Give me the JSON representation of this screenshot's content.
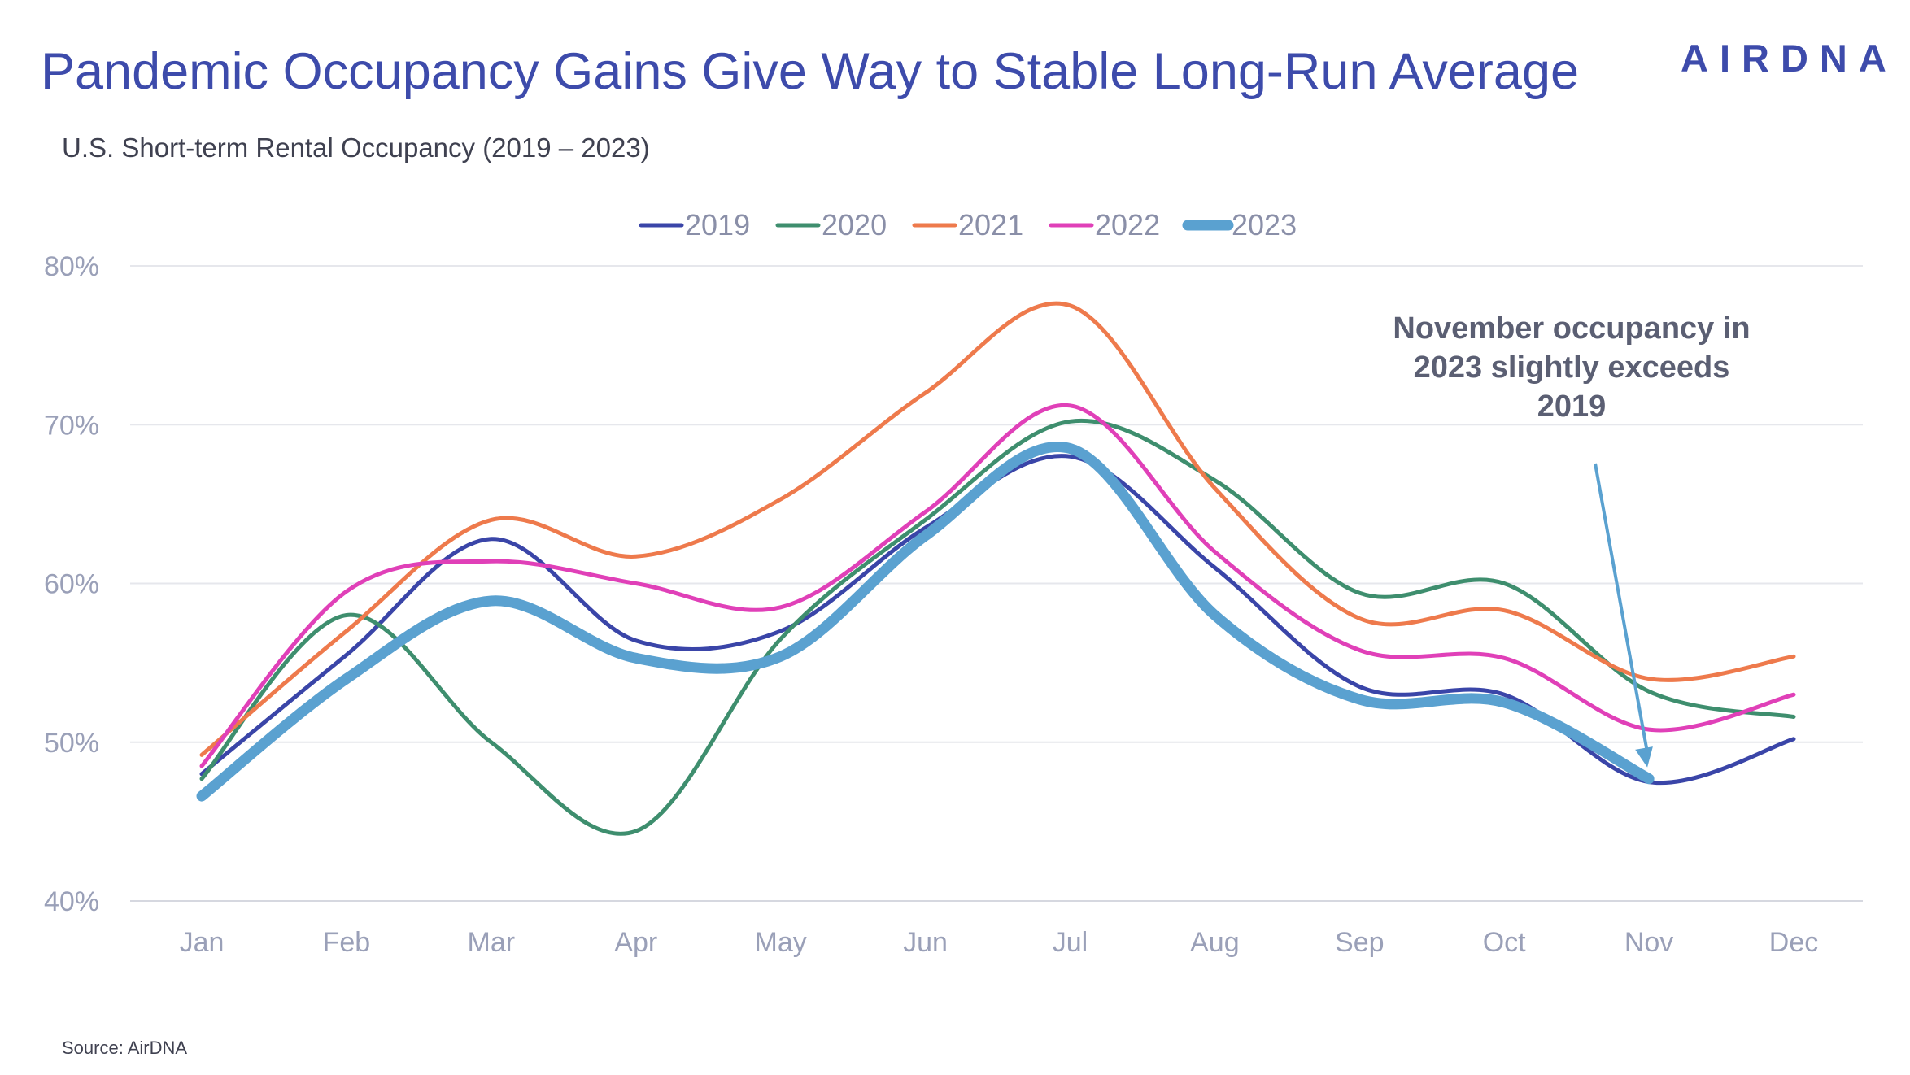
{
  "header": {
    "title": "Pandemic Occupancy Gains Give Way to Stable Long-Run Average",
    "subtitle": "U.S. Short-term Rental Occupancy (2019 – 2023)",
    "logo": "AIRDNA"
  },
  "footer": {
    "source": "Source: AirDNA"
  },
  "chart_data": {
    "type": "line",
    "title": "Pandemic Occupancy Gains Give Way to Stable Long-Run Average",
    "subtitle": "U.S. Short-term Rental Occupancy (2019 – 2023)",
    "categories": [
      "Jan",
      "Feb",
      "Mar",
      "Apr",
      "May",
      "Jun",
      "Jul",
      "Aug",
      "Sep",
      "Oct",
      "Nov",
      "Dec"
    ],
    "ylim": [
      40,
      80
    ],
    "yticks": [
      40,
      50,
      60,
      70,
      80
    ],
    "ytick_labels": [
      "40%",
      "50%",
      "60%",
      "70%",
      "80%"
    ],
    "grid": true,
    "legend_position": "top-center",
    "series": [
      {
        "name": "2019",
        "color": "#3a45a8",
        "width": "normal",
        "values": [
          48.0,
          55.5,
          62.8,
          56.4,
          57.0,
          63.5,
          68.0,
          61.0,
          53.5,
          53.0,
          47.5,
          50.2
        ]
      },
      {
        "name": "2020",
        "color": "#3e8e6e",
        "width": "normal",
        "values": [
          47.7,
          58.0,
          50.0,
          44.4,
          56.5,
          64.0,
          70.2,
          66.5,
          59.4,
          60.0,
          53.2,
          51.6
        ]
      },
      {
        "name": "2021",
        "color": "#ee7a4c",
        "width": "normal",
        "values": [
          49.2,
          57.0,
          64.0,
          61.7,
          65.3,
          72.0,
          77.5,
          66.0,
          57.8,
          58.3,
          54.0,
          55.4
        ]
      },
      {
        "name": "2022",
        "color": "#e040b8",
        "width": "normal",
        "values": [
          48.5,
          59.5,
          61.4,
          60.0,
          58.5,
          64.5,
          71.2,
          62.0,
          55.8,
          55.3,
          50.8,
          53.0
        ]
      },
      {
        "name": "2023",
        "color": "#5aa1d0",
        "width": "thick",
        "values": [
          46.6,
          54.0,
          58.9,
          55.3,
          55.4,
          63.0,
          68.5,
          58.0,
          52.7,
          52.5,
          47.7,
          null
        ]
      }
    ],
    "annotation": {
      "lines": [
        "November occupancy in",
        "2023 slightly exceeds",
        "2019"
      ],
      "points_to": {
        "category": "Nov",
        "value": 47.7
      },
      "color": "#5aa1d0"
    }
  }
}
